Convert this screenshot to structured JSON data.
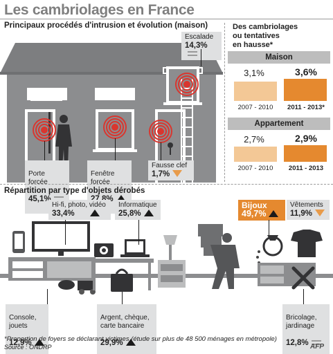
{
  "title": "Les cambriolages en France",
  "section_intrusion": "Principaux procédés d'intrusion et évolution (maison)",
  "section_objects": "Répartition par type d'objets dérobés",
  "intrusion": {
    "escalade": {
      "label": "Escalade",
      "pct": "14,3%",
      "trend": "stable"
    },
    "porte": {
      "label": "Porte\nforcée",
      "pct": "45,1%",
      "trend": "stable"
    },
    "fenetre": {
      "label": "Fenêtre\nforcée",
      "pct": "27,8%",
      "trend": "up"
    },
    "clef": {
      "label": "Fausse clef",
      "pct": "1,7%",
      "trend": "down"
    }
  },
  "panel": {
    "title": "Des cambriolages\nou tentatives\nen hausse*",
    "maison": {
      "label": "Maison",
      "v1": "3,1%",
      "p1": "2007 - 2010",
      "v2": "3,6%",
      "p2": "2011 - 2013*"
    },
    "appartement": {
      "label": "Appartement",
      "v1": "2,7%",
      "p1": "2007 - 2010",
      "v2": "2,9%",
      "p2": "2011 - 2013"
    }
  },
  "objects": {
    "hifi": {
      "label": "Hi-fi, photo, vidéo",
      "pct": "33,4%",
      "trend": "up"
    },
    "info": {
      "label": "Informatique",
      "pct": "25,8%",
      "trend": "up"
    },
    "bijoux": {
      "label": "Bijoux",
      "pct": "49,7%",
      "trend": "up"
    },
    "vetements": {
      "label": "Vêtements",
      "pct": "11,9%",
      "trend": "down"
    },
    "console": {
      "label": "Console,\njouets",
      "pct": "12,9%",
      "trend": "up"
    },
    "argent": {
      "label": "Argent, chèque,\ncarte bancaire",
      "pct": "29,9%",
      "trend": "up"
    },
    "bricolage": {
      "label": "Bricolage,\njardinage",
      "pct": "12,8%",
      "trend": "stable"
    }
  },
  "footnote": "*Proportion de foyers se déclarant victimes (étude sur plus de 48 500 ménages en métropole)",
  "source": "Source : ONDRP",
  "logo": "AFP",
  "colors": {
    "house": "#8c8d8f",
    "target": "#d9362f",
    "light_orange": "#f3c896",
    "dark_orange": "#e5892f",
    "band": "#bdbdbd",
    "label_bg": "#dfe0e1"
  }
}
